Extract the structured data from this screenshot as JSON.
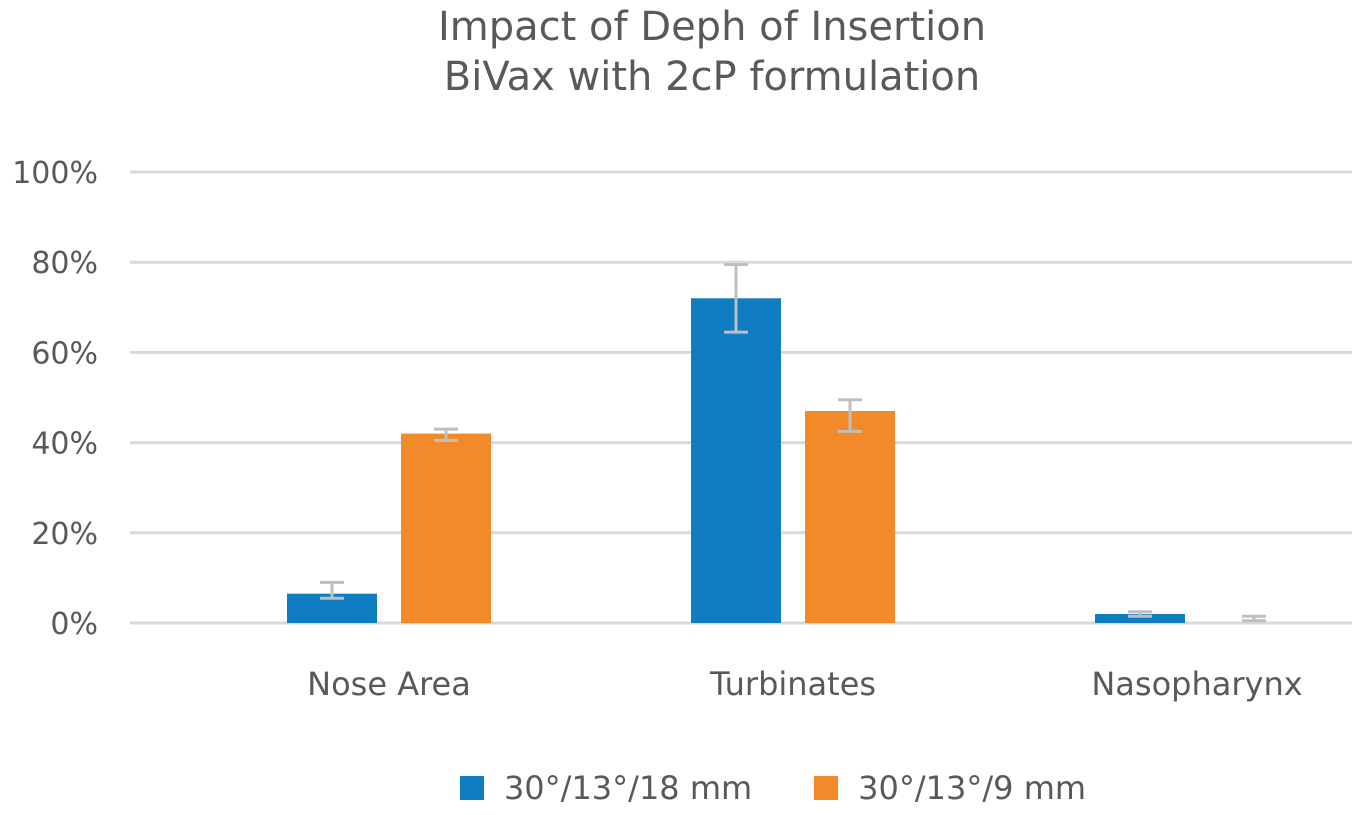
{
  "chart_data": {
    "type": "bar",
    "title_lines": [
      "Impact of Deph of Insertion",
      "BiVax with 2cP formulation"
    ],
    "categories": [
      "Nose Area",
      "Turbinates",
      "Nasopharynx"
    ],
    "ylim": [
      0,
      100
    ],
    "yticks": [
      0,
      20,
      40,
      60,
      80,
      100
    ],
    "ytick_labels": [
      "0%",
      "20%",
      "40%",
      "60%",
      "80%",
      "100%"
    ],
    "grid": true,
    "legend_position": "bottom",
    "series": [
      {
        "name": "30°/13°/18 mm",
        "color": "#0F7DC2",
        "values": [
          6.5,
          72,
          2
        ],
        "error_low": [
          5.5,
          64.5,
          1.5
        ],
        "error_high": [
          9,
          79.5,
          2.5
        ]
      },
      {
        "name": "30°/13°/9 mm",
        "color": "#F28A29",
        "values": [
          42,
          47,
          0
        ],
        "error_low": [
          40.5,
          42.5,
          0.5
        ],
        "error_high": [
          43,
          49.5,
          1.5
        ]
      }
    ],
    "error_bar_color": "#BFBFBF",
    "gridline_color": "#D9D9D9"
  }
}
